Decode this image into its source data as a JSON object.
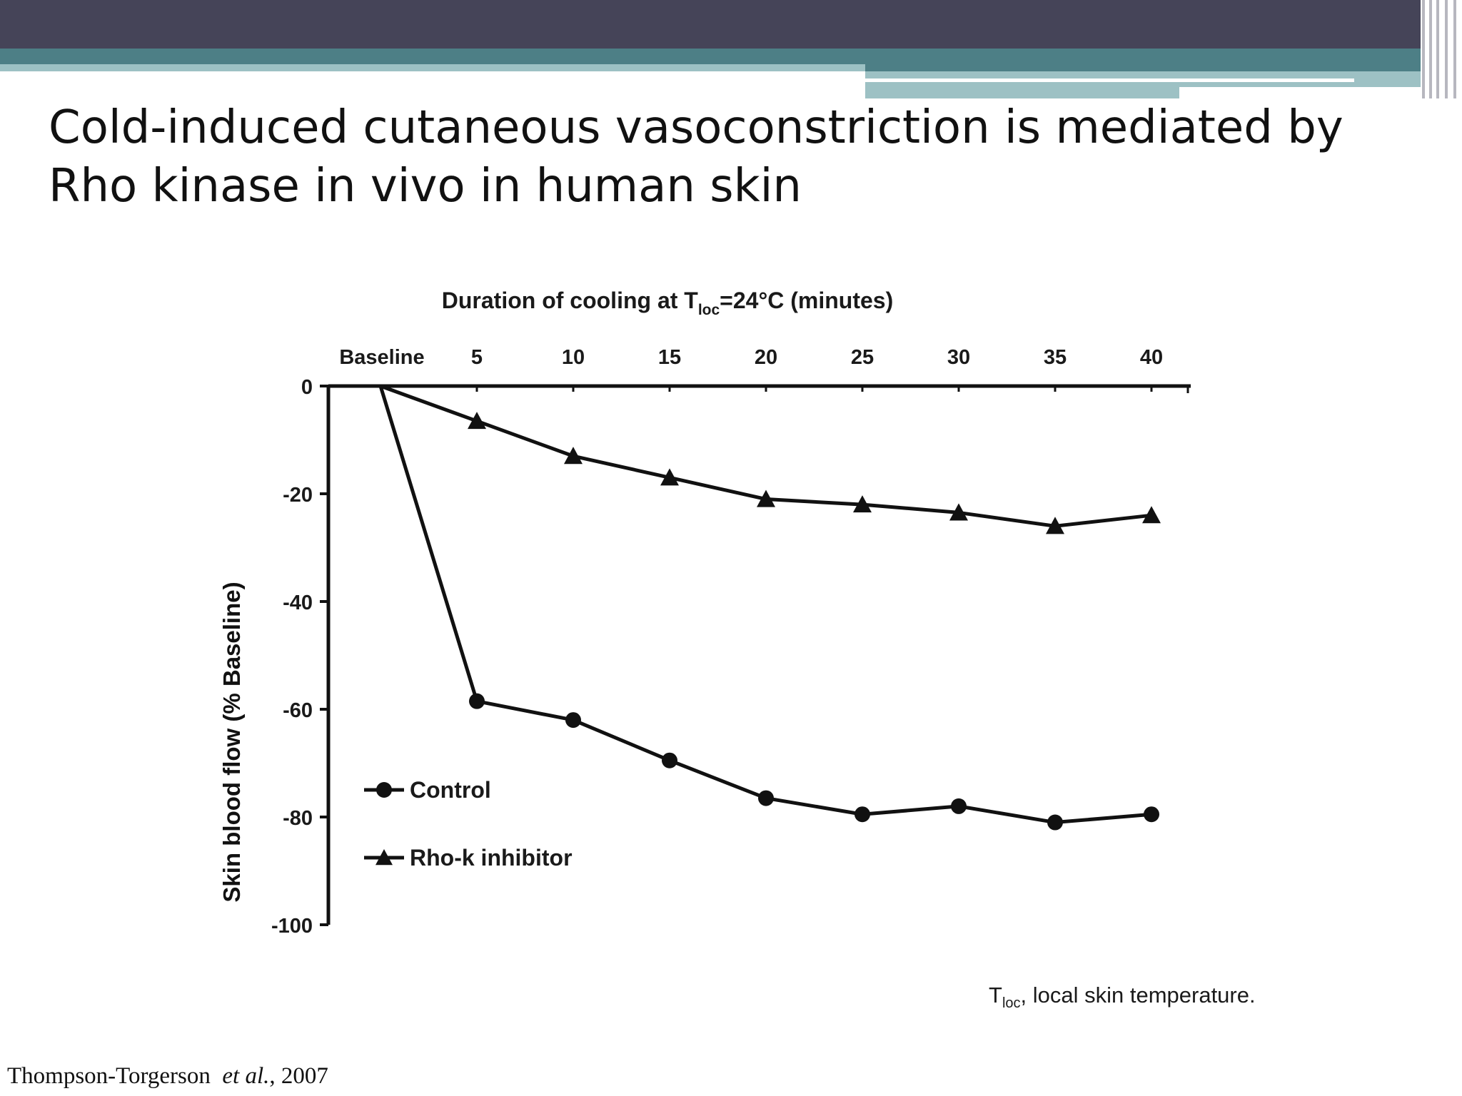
{
  "slide": {
    "title": "Cold-induced cutaneous vasoconstriction is mediated by Rho kinase in vivo in human skin",
    "footnote_main": "T",
    "footnote_sub": "loc",
    "footnote_rest": ", local skin temperature.",
    "citation_author": "Thompson-Torgerson",
    "citation_etal": "et al.",
    "citation_year": ", 2007"
  },
  "colors": {
    "header_dark": "#454458",
    "header_teal": "#4d7f86",
    "header_light": "#9dc1c4",
    "ink": "#111111"
  },
  "chart_data": {
    "type": "line",
    "title_prefix": "Duration of cooling at T",
    "title_sub": "loc",
    "title_suffix": "=24°C (minutes)",
    "ylabel": "Skin blood flow  (% Baseline)",
    "categories": [
      "Baseline",
      "5",
      "10",
      "15",
      "20",
      "25",
      "30",
      "35",
      "40"
    ],
    "y_ticks": [
      "0",
      "-20",
      "-40",
      "-60",
      "-80",
      "-100"
    ],
    "ylim": [
      -100,
      0
    ],
    "x_axis_position": "top",
    "grid": false,
    "legend_position": "bottom-left",
    "series": [
      {
        "name": "Control",
        "marker": "circle",
        "values": [
          0,
          -58.5,
          -62,
          -69.5,
          -76.5,
          -79.5,
          -78,
          -81,
          -79.5
        ]
      },
      {
        "name": "Rho-k inhibitor",
        "marker": "triangle",
        "values": [
          0,
          -6.5,
          -13,
          -17,
          -21,
          -22,
          -23.5,
          -26,
          -24
        ]
      }
    ]
  }
}
